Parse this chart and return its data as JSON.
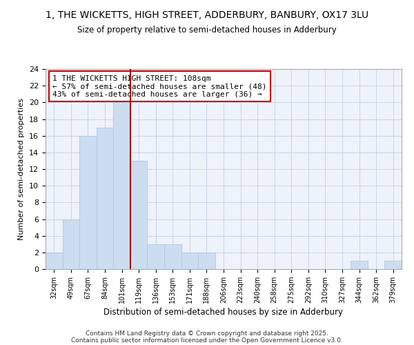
{
  "title1": "1, THE WICKETTS, HIGH STREET, ADDERBURY, BANBURY, OX17 3LU",
  "title2": "Size of property relative to semi-detached houses in Adderbury",
  "xlabel": "Distribution of semi-detached houses by size in Adderbury",
  "ylabel": "Number of semi-detached properties",
  "annotation_line1": "1 THE WICKETTS HIGH STREET: 108sqm",
  "annotation_line2": "← 57% of semi-detached houses are smaller (48)",
  "annotation_line3": "43% of semi-detached houses are larger (36) →",
  "bin_labels": [
    "32sqm",
    "49sqm",
    "67sqm",
    "84sqm",
    "101sqm",
    "119sqm",
    "136sqm",
    "153sqm",
    "171sqm",
    "188sqm",
    "206sqm",
    "223sqm",
    "240sqm",
    "258sqm",
    "275sqm",
    "292sqm",
    "310sqm",
    "327sqm",
    "344sqm",
    "362sqm",
    "379sqm"
  ],
  "counts": [
    2,
    6,
    16,
    17,
    20,
    13,
    3,
    3,
    2,
    2,
    0,
    0,
    0,
    0,
    0,
    0,
    0,
    0,
    1,
    0,
    1
  ],
  "bar_color": "#ccddf0",
  "bar_edgecolor": "#aac8e8",
  "vline_color": "#aa0000",
  "vline_x": 4.5,
  "grid_color": "#c8d4e8",
  "bg_color": "#eef2fa",
  "annotation_box_edgecolor": "#cc0000",
  "ylim": [
    0,
    24
  ],
  "yticks": [
    0,
    2,
    4,
    6,
    8,
    10,
    12,
    14,
    16,
    18,
    20,
    22,
    24
  ],
  "footnote1": "Contains HM Land Registry data © Crown copyright and database right 2025.",
  "footnote2": "Contains public sector information licensed under the Open Government Licence v3.0."
}
